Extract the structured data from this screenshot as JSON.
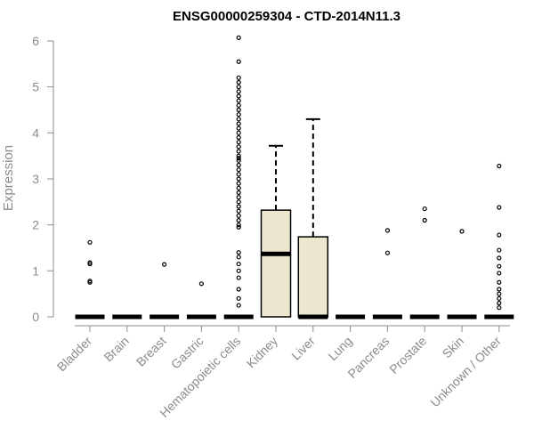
{
  "chart_data": {
    "type": "box",
    "title": "ENSG00000259304 - CTD-2014N11.3",
    "xlabel": "",
    "ylabel": "Expression",
    "ylim": [
      0,
      6
    ],
    "yticks": [
      0,
      1,
      2,
      3,
      4,
      5,
      6
    ],
    "box_color": "#ede7d0",
    "categories": [
      "Bladder",
      "Brain",
      "Breast",
      "Gastric",
      "Hematopoietic cells",
      "Kidney",
      "Liver",
      "Lung",
      "Pancreas",
      "Prostate",
      "Skin",
      "Unknown / Other"
    ],
    "series": [
      {
        "category": "Bladder",
        "q1": 0,
        "median": 0,
        "q3": 0,
        "whisker_low": 0,
        "whisker_high": 0,
        "outliers": [
          1.62,
          1.18,
          1.15,
          0.78,
          0.75
        ]
      },
      {
        "category": "Brain",
        "q1": 0,
        "median": 0,
        "q3": 0,
        "whisker_low": 0,
        "whisker_high": 0,
        "outliers": []
      },
      {
        "category": "Breast",
        "q1": 0,
        "median": 0,
        "q3": 0,
        "whisker_low": 0,
        "whisker_high": 0,
        "outliers": [
          1.14
        ]
      },
      {
        "category": "Gastric",
        "q1": 0,
        "median": 0,
        "q3": 0,
        "whisker_low": 0,
        "whisker_high": 0,
        "outliers": [
          0.72
        ]
      },
      {
        "category": "Hematopoietic cells",
        "q1": 0,
        "median": 0,
        "q3": 0,
        "whisker_low": 0,
        "whisker_high": 0,
        "outliers": [
          6.07,
          5.55,
          5.2,
          5.1,
          5.0,
          4.9,
          4.8,
          4.7,
          4.6,
          4.5,
          4.4,
          4.3,
          4.2,
          4.1,
          4.0,
          3.9,
          3.8,
          3.7,
          3.6,
          3.5,
          3.45,
          3.4,
          3.3,
          3.2,
          3.1,
          3.0,
          2.9,
          2.8,
          2.7,
          2.6,
          2.5,
          2.4,
          2.3,
          2.2,
          2.1,
          2.0,
          1.95,
          1.4,
          1.3,
          1.15,
          1.0,
          0.85,
          0.6,
          0.4,
          0.25
        ]
      },
      {
        "category": "Kidney",
        "q1": 0,
        "median": 1.37,
        "q3": 2.32,
        "whisker_low": 0,
        "whisker_high": 3.72,
        "outliers": []
      },
      {
        "category": "Liver",
        "q1": 0,
        "median": 0,
        "q3": 1.74,
        "whisker_low": 0,
        "whisker_high": 4.3,
        "outliers": []
      },
      {
        "category": "Lung",
        "q1": 0,
        "median": 0,
        "q3": 0,
        "whisker_low": 0,
        "whisker_high": 0,
        "outliers": []
      },
      {
        "category": "Pancreas",
        "q1": 0,
        "median": 0,
        "q3": 0,
        "whisker_low": 0,
        "whisker_high": 0,
        "outliers": [
          1.88,
          1.39
        ]
      },
      {
        "category": "Prostate",
        "q1": 0,
        "median": 0,
        "q3": 0,
        "whisker_low": 0,
        "whisker_high": 0,
        "outliers": [
          2.35,
          2.1
        ]
      },
      {
        "category": "Skin",
        "q1": 0,
        "median": 0,
        "q3": 0,
        "whisker_low": 0,
        "whisker_high": 0,
        "outliers": [
          1.86
        ]
      },
      {
        "category": "Unknown / Other",
        "q1": 0,
        "median": 0,
        "q3": 0,
        "whisker_low": 0,
        "whisker_high": 0,
        "outliers": [
          3.28,
          2.38,
          1.78,
          1.45,
          1.28,
          1.1,
          0.95,
          0.75,
          0.6,
          0.5,
          0.4,
          0.3,
          0.2
        ]
      }
    ]
  }
}
